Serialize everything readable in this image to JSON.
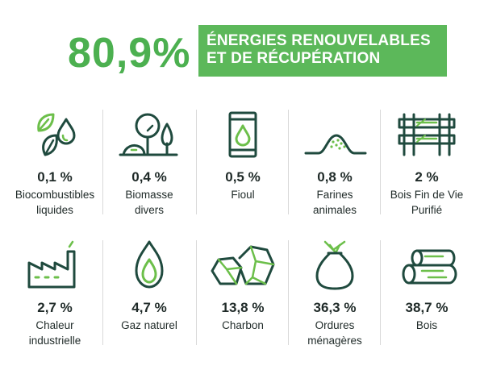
{
  "header": {
    "total_percent": "80,9%",
    "title_line1": "ÉNERGIES RENOUVELABLES",
    "title_line2": "ET DE RÉCUPÉRATION"
  },
  "colors": {
    "accent_green": "#5cb85a",
    "dark_green": "#1f4a3e",
    "light_green": "#9fd07a"
  },
  "items": [
    {
      "percent": "0,1 %",
      "label_line1": "Biocombustibles",
      "label_line2": "liquides",
      "icon": "leaves-droplet-icon"
    },
    {
      "percent": "0,4 %",
      "label_line1": "Biomasse",
      "label_line2": "divers",
      "icon": "trees-icon"
    },
    {
      "percent": "0,5 %",
      "label_line1": "Fioul",
      "label_line2": "",
      "icon": "oil-barrel-icon"
    },
    {
      "percent": "0,8 %",
      "label_line1": "Farines",
      "label_line2": "animales",
      "icon": "powder-pile-icon"
    },
    {
      "percent": "2 %",
      "label_line1": "Bois Fin de Vie",
      "label_line2": "Purifié",
      "icon": "wood-pallet-icon"
    },
    {
      "percent": "2,7 %",
      "label_line1": "Chaleur",
      "label_line2": "industrielle",
      "icon": "factory-icon"
    },
    {
      "percent": "4,7 %",
      "label_line1": "Gaz naturel",
      "label_line2": "",
      "icon": "flame-icon"
    },
    {
      "percent": "13,8 %",
      "label_line1": "Charbon",
      "label_line2": "",
      "icon": "coal-icon"
    },
    {
      "percent": "36,3 %",
      "label_line1": "Ordures",
      "label_line2": "ménagères",
      "icon": "trash-bag-icon"
    },
    {
      "percent": "38,7 %",
      "label_line1": "Bois",
      "label_line2": "",
      "icon": "logs-icon"
    }
  ]
}
